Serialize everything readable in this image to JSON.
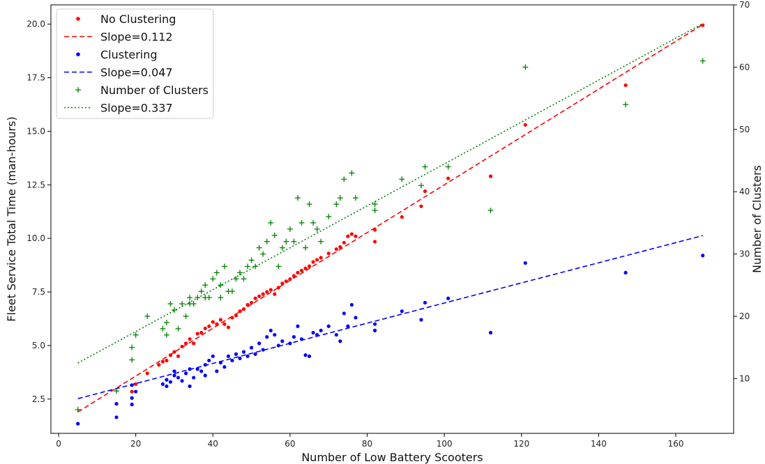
{
  "chart_data": {
    "type": "scatter",
    "xlabel": "Number of Low Battery Scooters",
    "ylabel": "Fleet Service Total Time (man-hours)",
    "y2label": "Number of Clusters",
    "xlim": [
      -2,
      175
    ],
    "ylim": [
      0.9,
      20.9
    ],
    "y2lim": [
      1.2,
      70.0
    ],
    "x_ticks": [
      0,
      20,
      40,
      60,
      80,
      100,
      120,
      140,
      160
    ],
    "y_ticks": [
      2.5,
      5.0,
      7.5,
      10.0,
      12.5,
      15.0,
      17.5,
      20.0
    ],
    "y2_ticks": [
      10,
      20,
      30,
      40,
      50,
      60,
      70
    ],
    "legend_position": "upper-left",
    "colors": {
      "no_clustering": "#ff0000",
      "clustering": "#0000ff",
      "clusters": "#008000"
    },
    "series": [
      {
        "name": "No Clustering",
        "axis": "left",
        "marker": "dot",
        "color": "#ff0000",
        "points": [
          [
            5,
            1.35
          ],
          [
            15,
            2.28
          ],
          [
            19,
            2.85
          ],
          [
            20,
            3.2
          ],
          [
            23,
            3.7
          ],
          [
            26,
            4.1
          ],
          [
            27,
            4.25
          ],
          [
            28,
            4.3
          ],
          [
            29,
            4.55
          ],
          [
            30,
            4.7
          ],
          [
            31,
            4.5
          ],
          [
            32,
            4.95
          ],
          [
            33,
            5.1
          ],
          [
            34,
            5.3
          ],
          [
            35,
            5.1
          ],
          [
            36,
            5.55
          ],
          [
            37,
            5.6
          ],
          [
            38,
            5.8
          ],
          [
            39,
            5.9
          ],
          [
            40,
            6.1
          ],
          [
            41,
            6.0
          ],
          [
            42,
            6.2
          ],
          [
            43,
            6.0
          ],
          [
            44,
            5.85
          ],
          [
            45,
            6.3
          ],
          [
            46,
            6.4
          ],
          [
            47,
            6.6
          ],
          [
            48,
            6.7
          ],
          [
            49,
            6.9
          ],
          [
            50,
            7.0
          ],
          [
            51,
            7.2
          ],
          [
            52,
            7.3
          ],
          [
            53,
            7.4
          ],
          [
            54,
            7.5
          ],
          [
            55,
            7.6
          ],
          [
            56,
            7.4
          ],
          [
            57,
            7.7
          ],
          [
            58,
            7.9
          ],
          [
            59,
            8.0
          ],
          [
            60,
            8.1
          ],
          [
            61,
            8.25
          ],
          [
            62,
            8.4
          ],
          [
            63,
            8.5
          ],
          [
            64,
            8.6
          ],
          [
            65,
            8.7
          ],
          [
            66,
            8.9
          ],
          [
            67,
            9.0
          ],
          [
            68,
            9.1
          ],
          [
            70,
            9.3
          ],
          [
            72,
            9.5
          ],
          [
            73,
            9.6
          ],
          [
            74,
            9.8
          ],
          [
            75,
            10.1
          ],
          [
            76,
            10.2
          ],
          [
            77,
            10.1
          ],
          [
            82,
            10.4
          ],
          [
            82,
            9.85
          ],
          [
            89,
            11.0
          ],
          [
            94,
            11.5
          ],
          [
            95,
            12.2
          ],
          [
            101,
            12.8
          ],
          [
            112,
            12.9
          ],
          [
            121,
            15.3
          ],
          [
            147,
            17.15
          ],
          [
            167,
            19.95
          ]
        ]
      },
      {
        "name": "Clustering",
        "axis": "left",
        "marker": "dot",
        "color": "#0000ff",
        "points": [
          [
            5,
            1.35
          ],
          [
            15,
            1.65
          ],
          [
            15,
            2.28
          ],
          [
            19,
            2.25
          ],
          [
            19,
            2.55
          ],
          [
            19,
            3.15
          ],
          [
            20,
            2.85
          ],
          [
            27,
            3.2
          ],
          [
            28,
            3.1
          ],
          [
            28,
            3.4
          ],
          [
            29,
            3.3
          ],
          [
            30,
            3.6
          ],
          [
            30,
            3.8
          ],
          [
            31,
            3.5
          ],
          [
            32,
            3.35
          ],
          [
            33,
            3.7
          ],
          [
            34,
            3.1
          ],
          [
            34,
            3.9
          ],
          [
            35,
            3.5
          ],
          [
            36,
            3.9
          ],
          [
            37,
            3.8
          ],
          [
            38,
            4.1
          ],
          [
            38,
            3.6
          ],
          [
            39,
            4.3
          ],
          [
            40,
            4.5
          ],
          [
            41,
            3.8
          ],
          [
            42,
            4.2
          ],
          [
            43,
            4.0
          ],
          [
            44,
            4.5
          ],
          [
            45,
            4.3
          ],
          [
            46,
            4.6
          ],
          [
            47,
            4.4
          ],
          [
            48,
            4.7
          ],
          [
            49,
            4.5
          ],
          [
            50,
            4.9
          ],
          [
            51,
            4.6
          ],
          [
            52,
            5.1
          ],
          [
            53,
            4.8
          ],
          [
            54,
            5.4
          ],
          [
            55,
            5.7
          ],
          [
            56,
            5.5
          ],
          [
            57,
            5.0
          ],
          [
            58,
            5.2
          ],
          [
            60,
            5.1
          ],
          [
            61,
            5.4
          ],
          [
            62,
            5.9
          ],
          [
            63,
            5.3
          ],
          [
            64,
            4.55
          ],
          [
            65,
            4.5
          ],
          [
            66,
            5.6
          ],
          [
            67,
            5.5
          ],
          [
            68,
            5.7
          ],
          [
            70,
            5.9
          ],
          [
            72,
            5.5
          ],
          [
            73,
            5.2
          ],
          [
            74,
            6.5
          ],
          [
            75,
            5.9
          ],
          [
            76,
            6.9
          ],
          [
            77,
            6.3
          ],
          [
            82,
            5.7
          ],
          [
            82,
            6.0
          ],
          [
            89,
            6.6
          ],
          [
            94,
            6.2
          ],
          [
            95,
            7.0
          ],
          [
            101,
            7.2
          ],
          [
            112,
            5.6
          ],
          [
            121,
            8.85
          ],
          [
            147,
            8.4
          ],
          [
            167,
            9.2
          ]
        ]
      },
      {
        "name": "Number of Clusters",
        "axis": "right",
        "marker": "plus",
        "color": "#008000",
        "points": [
          [
            5,
            5
          ],
          [
            15,
            8
          ],
          [
            19,
            13
          ],
          [
            19,
            15
          ],
          [
            20,
            17
          ],
          [
            23,
            20
          ],
          [
            27,
            18
          ],
          [
            28,
            19
          ],
          [
            28,
            17
          ],
          [
            29,
            22
          ],
          [
            30,
            21
          ],
          [
            31,
            18
          ],
          [
            32,
            22
          ],
          [
            33,
            20
          ],
          [
            34,
            22
          ],
          [
            34,
            23
          ],
          [
            35,
            22
          ],
          [
            36,
            23
          ],
          [
            37,
            24
          ],
          [
            38,
            25
          ],
          [
            38,
            23
          ],
          [
            39,
            23
          ],
          [
            40,
            26
          ],
          [
            41,
            27
          ],
          [
            42,
            25
          ],
          [
            42,
            23
          ],
          [
            43,
            28
          ],
          [
            44,
            24
          ],
          [
            45,
            24
          ],
          [
            46,
            26
          ],
          [
            47,
            27
          ],
          [
            48,
            26
          ],
          [
            49,
            28
          ],
          [
            50,
            29
          ],
          [
            51,
            28
          ],
          [
            52,
            31
          ],
          [
            53,
            30
          ],
          [
            54,
            32
          ],
          [
            55,
            35
          ],
          [
            56,
            33
          ],
          [
            57,
            28
          ],
          [
            58,
            31
          ],
          [
            59,
            32
          ],
          [
            60,
            34
          ],
          [
            61,
            32
          ],
          [
            62,
            39
          ],
          [
            63,
            35
          ],
          [
            64,
            31
          ],
          [
            65,
            38
          ],
          [
            66,
            35
          ],
          [
            67,
            34
          ],
          [
            68,
            32
          ],
          [
            70,
            36
          ],
          [
            72,
            38
          ],
          [
            73,
            39
          ],
          [
            74,
            42
          ],
          [
            76,
            43
          ],
          [
            77,
            39
          ],
          [
            82,
            37
          ],
          [
            82,
            38
          ],
          [
            89,
            42
          ],
          [
            94,
            41
          ],
          [
            95,
            44
          ],
          [
            101,
            44
          ],
          [
            112,
            37
          ],
          [
            121,
            60
          ],
          [
            147,
            54
          ],
          [
            167,
            61
          ]
        ]
      }
    ],
    "fits": [
      {
        "name": "Slope=0.112",
        "axis": "left",
        "style": "dashed",
        "color": "#ff0000",
        "from": [
          5,
          1.9
        ],
        "to": [
          167,
          19.98
        ]
      },
      {
        "name": "Slope=0.047",
        "axis": "left",
        "style": "dashed",
        "color": "#0000ff",
        "from": [
          5,
          2.52
        ],
        "to": [
          167,
          10.13
        ]
      },
      {
        "name": "Slope=0.337",
        "axis": "right",
        "style": "dotted",
        "color": "#008000",
        "from": [
          5,
          12.5
        ],
        "to": [
          167,
          67.0
        ]
      }
    ]
  }
}
